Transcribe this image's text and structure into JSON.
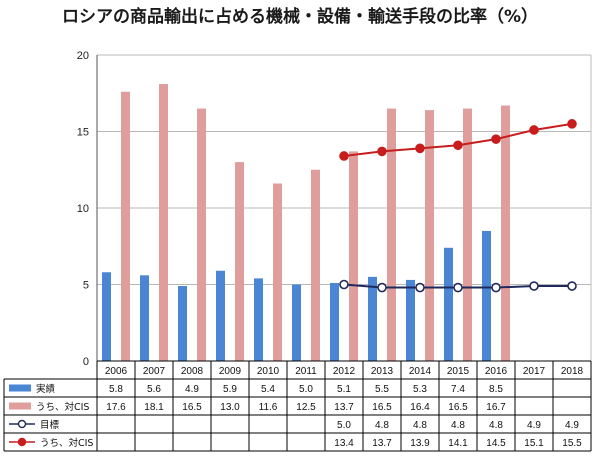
{
  "title": "ロシアの商品輸出に占める機械・設備・輸送手段の比率（%）",
  "colors": {
    "actual": "#4a86d3",
    "actual_cis": "#df9e9c",
    "target": "#1f2a5c",
    "target_cis": "#c81d1d",
    "grid": "#b8b8b8",
    "border": "#000000"
  },
  "chart_data": {
    "type": "bar",
    "title": "ロシアの商品輸出に占める機械・設備・輸送手段の比率（%）",
    "categories": [
      "2006",
      "2007",
      "2008",
      "2009",
      "2010",
      "2011",
      "2012",
      "2013",
      "2014",
      "2015",
      "2016",
      "2017",
      "2018"
    ],
    "ylim": [
      0,
      20
    ],
    "yticks": [
      0,
      5,
      10,
      15,
      20
    ],
    "grid": true,
    "legend": "table-bottom",
    "series": [
      {
        "name": "実績",
        "type": "bar",
        "values": [
          5.8,
          5.6,
          4.9,
          5.9,
          5.4,
          5.0,
          5.1,
          5.5,
          5.3,
          7.4,
          8.5,
          null,
          null
        ]
      },
      {
        "name": "うち、対CIS",
        "type": "bar",
        "values": [
          17.6,
          18.1,
          16.5,
          13.0,
          11.6,
          12.5,
          13.7,
          16.5,
          16.4,
          16.5,
          16.7,
          null,
          null
        ]
      },
      {
        "name": "目標",
        "type": "line",
        "marker": "hollow-circle",
        "values": [
          null,
          null,
          null,
          null,
          null,
          null,
          5.0,
          4.8,
          4.8,
          4.8,
          4.8,
          4.9,
          4.9
        ]
      },
      {
        "name": "うち、対CIS",
        "type": "line",
        "marker": "filled-circle",
        "values": [
          null,
          null,
          null,
          null,
          null,
          null,
          13.4,
          13.7,
          13.9,
          14.1,
          14.5,
          15.1,
          15.5
        ]
      }
    ],
    "table_values": [
      [
        "5.8",
        "5.6",
        "4.9",
        "5.9",
        "5.4",
        "5.0",
        "5.1",
        "5.5",
        "5.3",
        "7.4",
        "8.5",
        "",
        ""
      ],
      [
        "17.6",
        "18.1",
        "16.5",
        "13.0",
        "11.6",
        "12.5",
        "13.7",
        "16.5",
        "16.4",
        "16.5",
        "16.7",
        "",
        ""
      ],
      [
        "",
        "",
        "",
        "",
        "",
        "",
        "5.0",
        "4.8",
        "4.8",
        "4.8",
        "4.8",
        "4.9",
        "4.9"
      ],
      [
        "",
        "",
        "",
        "",
        "",
        "",
        "13.4",
        "13.7",
        "13.9",
        "14.1",
        "14.5",
        "15.1",
        "15.5"
      ]
    ]
  }
}
